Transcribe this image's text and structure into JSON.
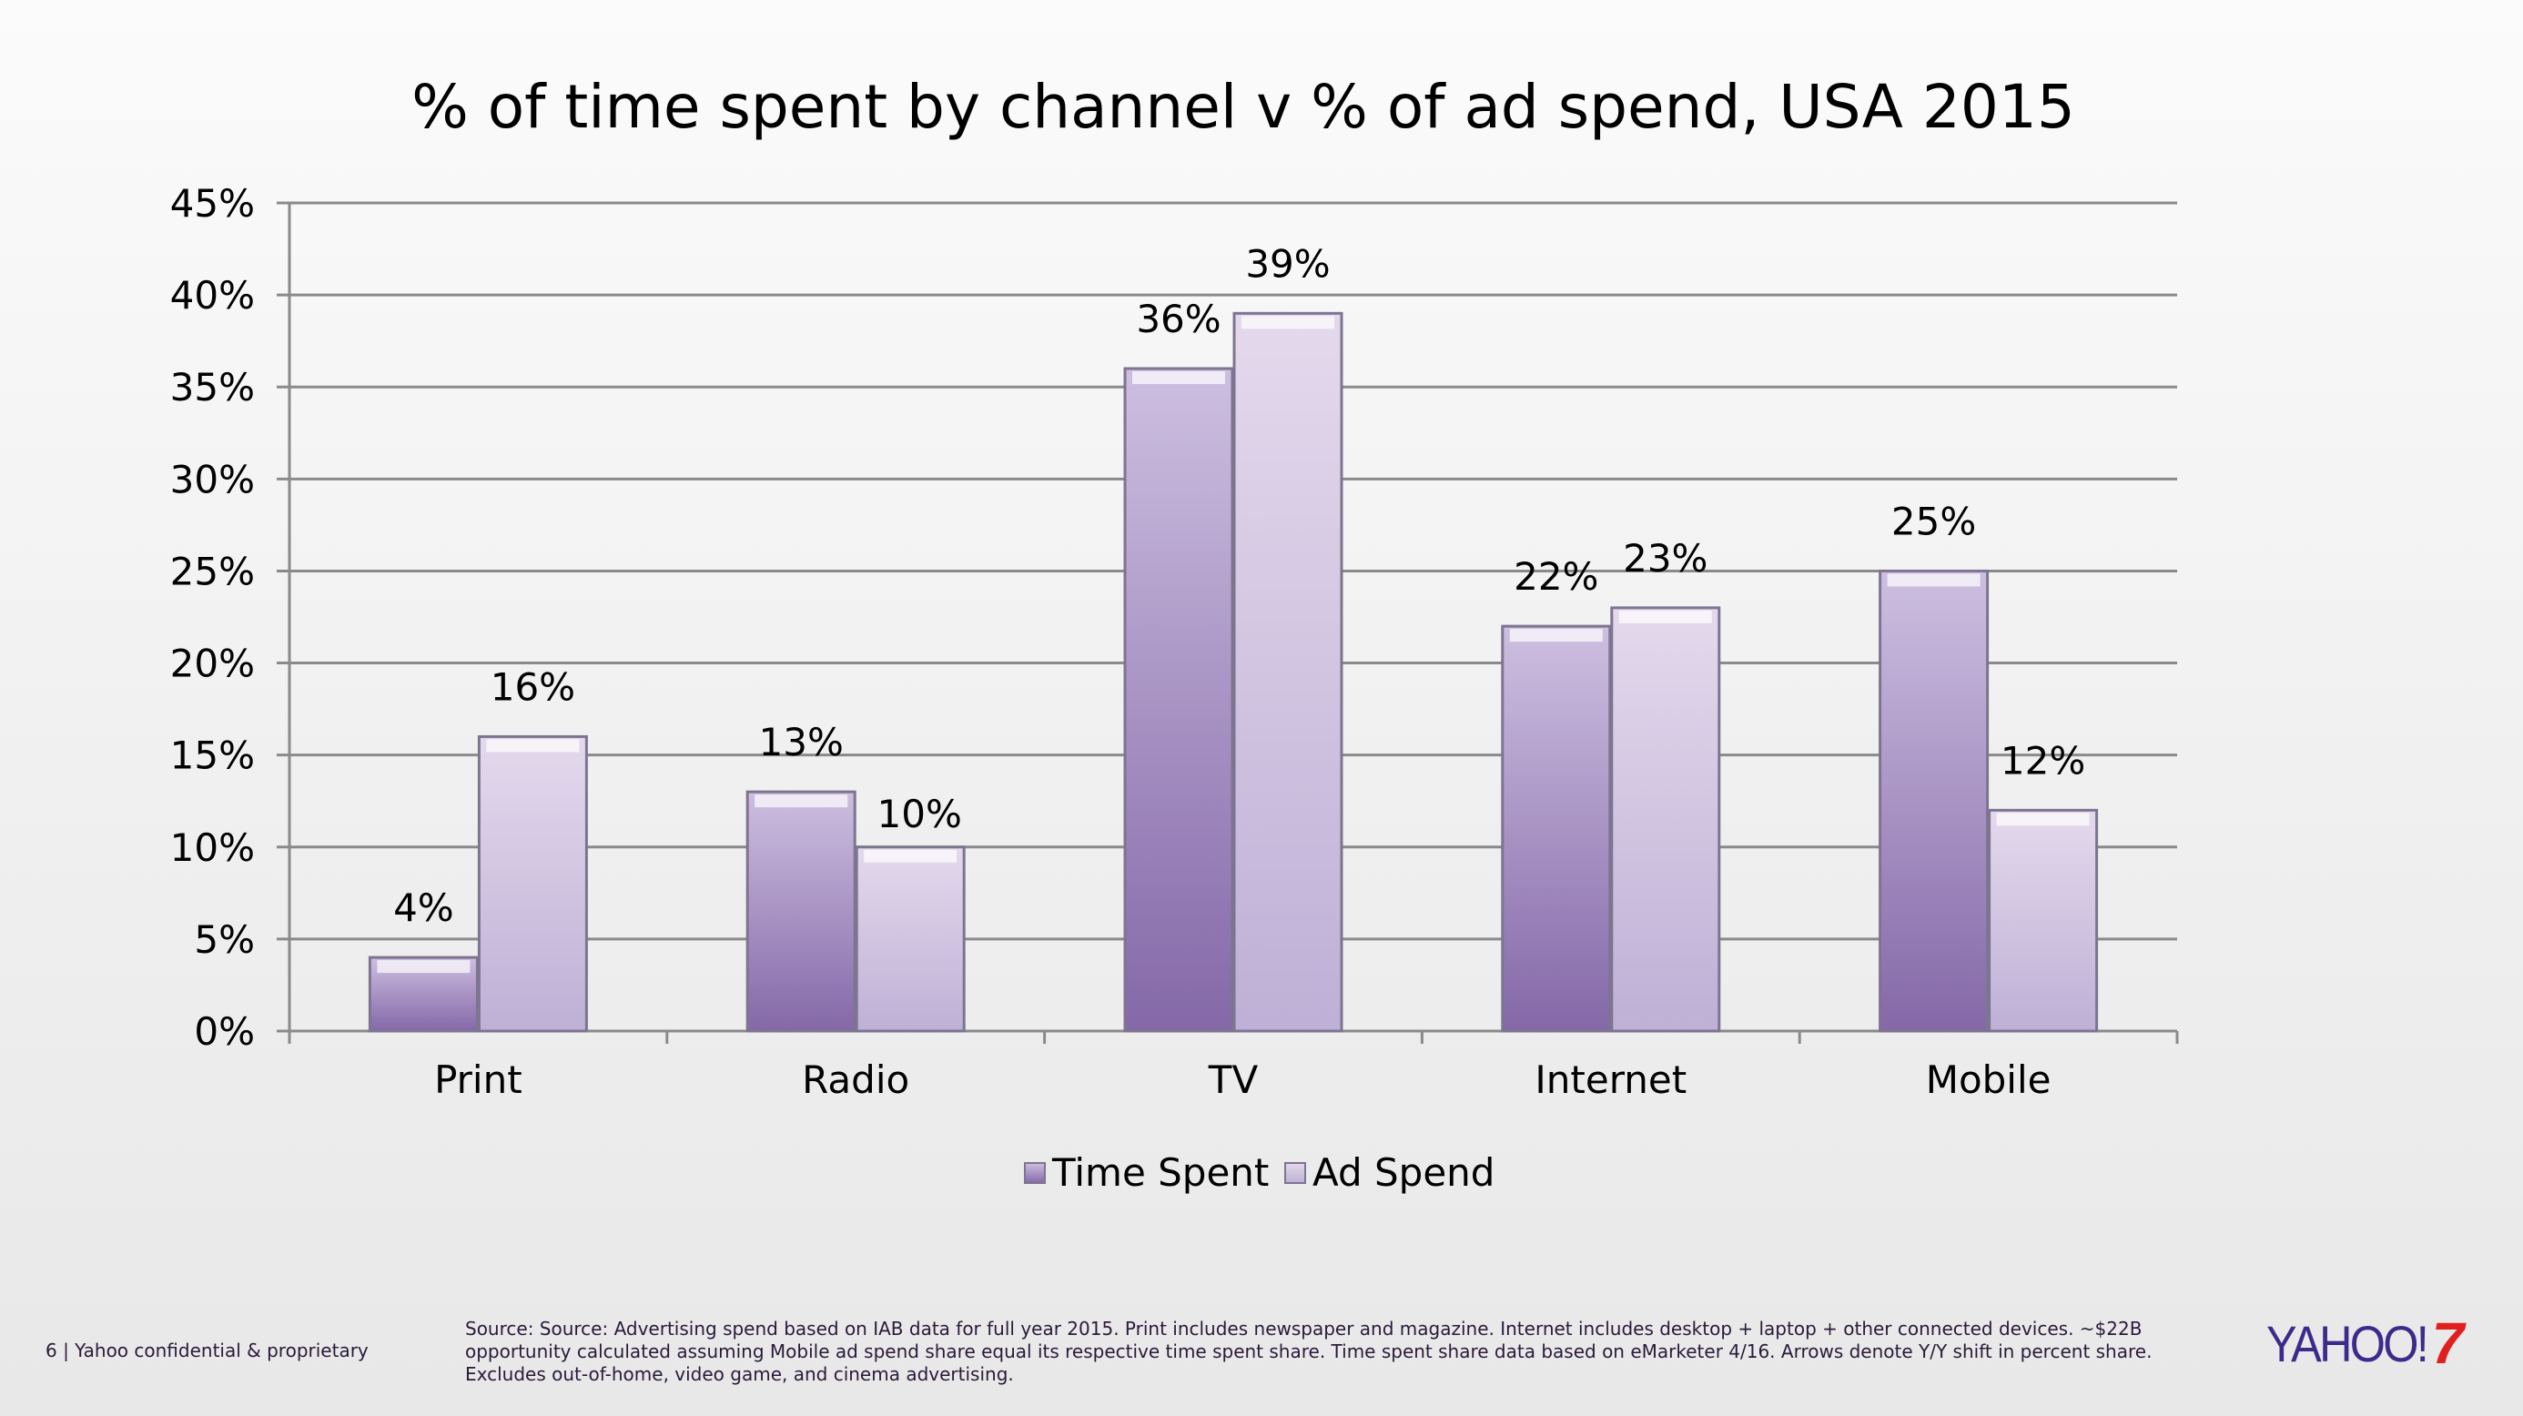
{
  "chart_data": {
    "type": "bar",
    "title": "% of time spent by channel v % of ad spend, USA 2015",
    "categories": [
      "Print",
      "Radio",
      "TV",
      "Internet",
      "Mobile"
    ],
    "series": [
      {
        "name": "Time Spent",
        "values": [
          4,
          13,
          36,
          22,
          25
        ],
        "labels": [
          "4%",
          "13%",
          "36%",
          "22%",
          "25%"
        ],
        "color": "#8a6fae"
      },
      {
        "name": "Ad Spend",
        "values": [
          16,
          10,
          39,
          23,
          12
        ],
        "labels": [
          "16%",
          "10%",
          "39%",
          "23%",
          "12%"
        ],
        "color": "#cfc2df"
      }
    ],
    "ylim": [
      0,
      45
    ],
    "yticks": [
      "0%",
      "5%",
      "10%",
      "15%",
      "20%",
      "25%",
      "30%",
      "35%",
      "40%",
      "45%"
    ],
    "ytick_values": [
      0,
      5,
      10,
      15,
      20,
      25,
      30,
      35,
      40,
      45
    ],
    "grid": true,
    "legend": "bottom",
    "xlabel": "",
    "ylabel": ""
  },
  "footer": {
    "page": "6 | Yahoo confidential & proprietary",
    "source": "Source: Source: Advertising spend based on IAB data for full year 2015. Print includes newspaper and magazine. Internet includes desktop + laptop + other connected devices. ~$22B opportunity calculated assuming Mobile ad spend share equal its respective time spent share. Time spent share data based on eMarketer 4/16. Arrows denote Y/Y shift in percent share. Excludes out-of-home, video game, and cinema advertising.",
    "logo": "YAHOO!7"
  }
}
